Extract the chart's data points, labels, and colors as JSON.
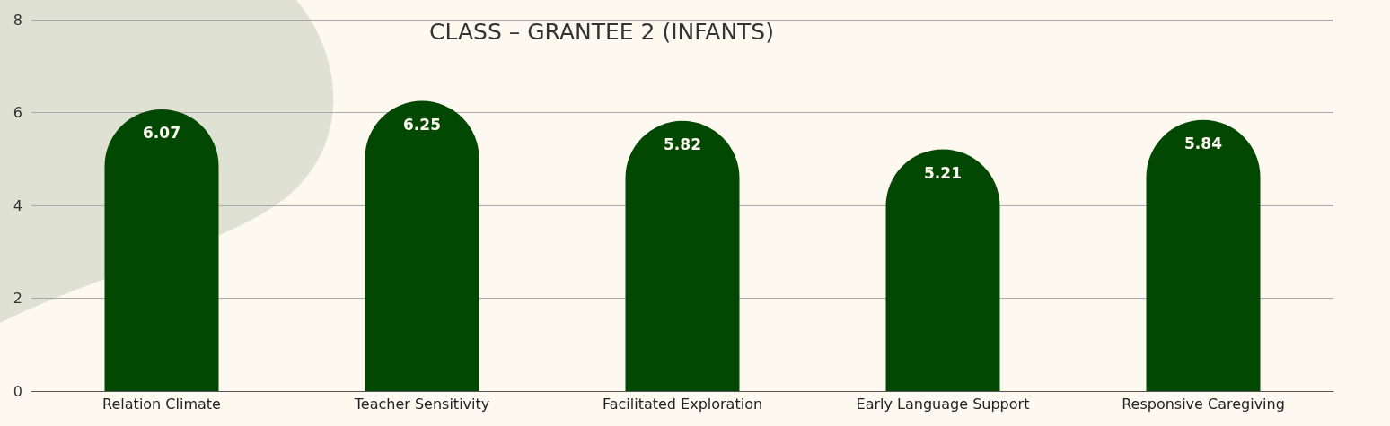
{
  "chart_data": {
    "type": "bar",
    "title": "CLASS – GRANTEE 2 (INFANTS)",
    "categories": [
      "Relation Climate",
      "Teacher Sensitivity",
      "Facilitated Exploration",
      "Early Language Support",
      "Responsive Caregiving"
    ],
    "values": [
      6.07,
      6.25,
      5.82,
      5.21,
      5.84
    ],
    "color": "#024702",
    "ylim": [
      0,
      8
    ],
    "yticks": [
      0,
      2,
      4,
      6,
      8
    ],
    "grid": "y",
    "data_labels": true
  }
}
